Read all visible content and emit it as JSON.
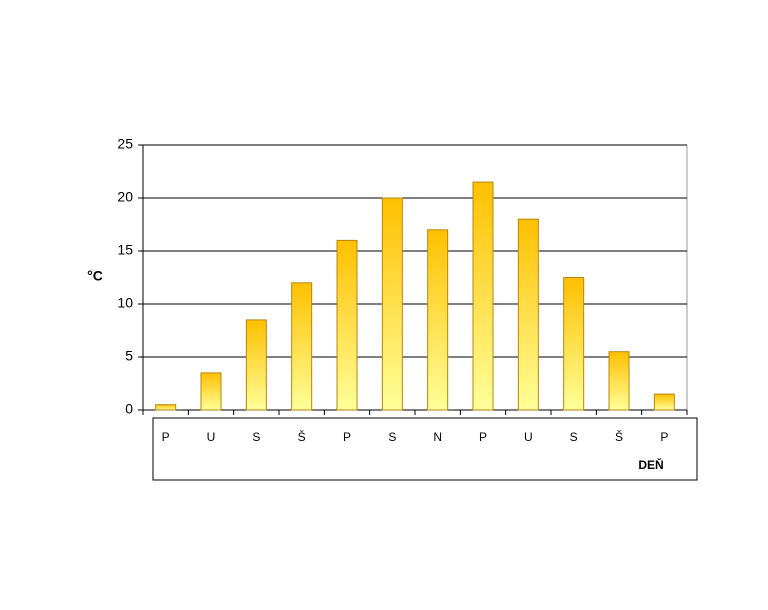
{
  "chart_data": {
    "type": "bar",
    "categories": [
      "P",
      "U",
      "S",
      "Š",
      "P",
      "S",
      "N",
      "P",
      "U",
      "S",
      "Š",
      "P"
    ],
    "values": [
      0.5,
      3.5,
      8.5,
      12,
      16,
      20,
      17,
      21.5,
      18,
      12.5,
      5.5,
      1.5
    ],
    "color": "#ffc000",
    "ylabel": "°C",
    "xlabel": "DEŇ",
    "ylim": [
      0,
      25
    ],
    "yticks": [
      0,
      5,
      10,
      15,
      20,
      25
    ],
    "grid": true
  }
}
